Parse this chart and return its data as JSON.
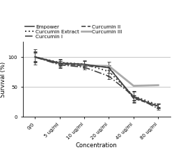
{
  "x_labels": [
    "0/0",
    "5 ug/ml",
    "10 ug/ml",
    "20 ug/ml",
    "40 ug/ml",
    "80 ug/ml"
  ],
  "x_values": [
    0,
    1,
    2,
    3,
    4,
    5
  ],
  "series": {
    "Empower": {
      "y": [
        100,
        90,
        88,
        82,
        33,
        18
      ],
      "yerr": [
        13,
        7,
        6,
        4,
        9,
        4
      ],
      "color": "#444444",
      "linestyle": "-",
      "linewidth": 1.2
    },
    "Curcumin Extract": {
      "y": [
        100,
        91,
        88,
        76,
        35,
        20
      ],
      "yerr": [
        9,
        5,
        5,
        8,
        7,
        3
      ],
      "color": "#444444",
      "linestyle": ":",
      "linewidth": 1.4
    },
    "Curcumin I": {
      "y": [
        100,
        87,
        83,
        68,
        35,
        14
      ],
      "yerr": [
        7,
        6,
        4,
        5,
        8,
        2
      ],
      "color": "#444444",
      "linestyle": "-.",
      "linewidth": 1.2
    },
    "Curcumin II": {
      "y": [
        100,
        89,
        85,
        83,
        31,
        18
      ],
      "yerr": [
        8,
        4,
        3,
        9,
        6,
        3
      ],
      "color": "#444444",
      "linestyle": "--",
      "linewidth": 1.2
    },
    "Curcumin III": {
      "y": [
        100,
        89,
        86,
        85,
        52,
        53
      ],
      "yerr": [
        0,
        0,
        0,
        0,
        0,
        0
      ],
      "color": "#aaaaaa",
      "linestyle": "-",
      "linewidth": 2.0
    }
  },
  "ylabel": "Survival (%)",
  "xlabel": "Concentration",
  "ylim": [
    0,
    125
  ],
  "yticks": [
    0,
    50,
    100
  ],
  "background_color": "#ffffff",
  "grid_color": "#bbbbbb",
  "axis_fontsize": 6,
  "legend_fontsize": 5.2,
  "tick_fontsize": 5
}
